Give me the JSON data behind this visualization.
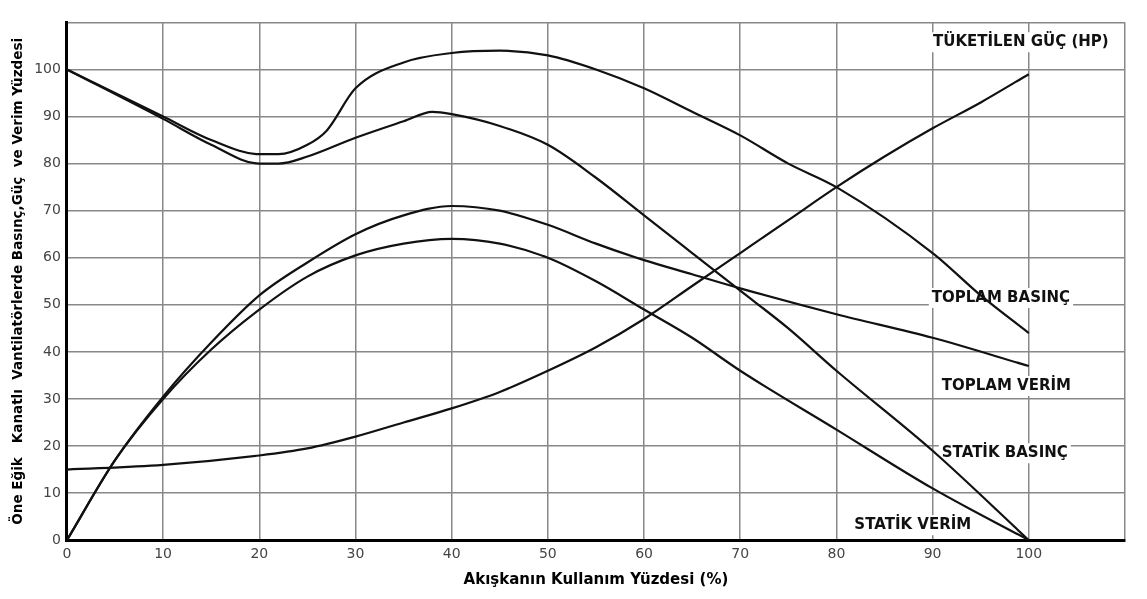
{
  "chart_data": {
    "type": "line",
    "xlabel": "Akışkanın Kullanım Yüzdesi (%)",
    "ylabel": "Öne Eğik   Kanatlı  Vantilatörlerde Basınç,Güç  ve Verim Yüzdesi",
    "xlim": [
      0,
      110
    ],
    "ylim": [
      0,
      110
    ],
    "xticks": [
      0,
      10,
      20,
      30,
      40,
      50,
      60,
      70,
      80,
      90,
      100,
      {
        "value": 110,
        "label": null
      }
    ],
    "yticks": [
      0,
      10,
      20,
      30,
      40,
      50,
      60,
      70,
      80,
      90,
      100,
      {
        "value": 110,
        "label": null
      }
    ],
    "grid": true,
    "legend": false,
    "marker": "none",
    "line_style": "solid",
    "series": [
      {
        "name": "TÜKETİLEN GÜÇ (HP)",
        "color": "#111111",
        "x": [
          0,
          10,
          20,
          25,
          30,
          35,
          40,
          45,
          50,
          55,
          60,
          65,
          70,
          75,
          80,
          85,
          90,
          95,
          100
        ],
        "values": [
          15,
          16,
          18,
          19.5,
          22,
          25,
          28,
          31.5,
          36,
          41,
          47,
          54,
          61,
          68,
          75,
          81.5,
          87.5,
          93,
          99
        ]
      },
      {
        "name": "TOPLAM BASINÇ",
        "color": "#111111",
        "x": [
          0,
          5,
          10,
          15,
          20,
          22,
          25,
          27,
          30,
          35,
          40,
          45,
          50,
          55,
          60,
          65,
          70,
          75,
          80,
          90,
          95,
          100
        ],
        "values": [
          100,
          95,
          90,
          85,
          82,
          82,
          84,
          87,
          96,
          101.5,
          103.5,
          104,
          103,
          100,
          96,
          91,
          86,
          80,
          75,
          61,
          52,
          44
        ]
      },
      {
        "name": "TOPLAM VERİM",
        "color": "#111111",
        "x": [
          0,
          5,
          10,
          15,
          20,
          25,
          30,
          35,
          40,
          45,
          50,
          55,
          60,
          65,
          70,
          80,
          90,
          100
        ],
        "values": [
          0,
          17,
          30.5,
          42,
          52,
          59,
          65,
          69,
          71,
          70,
          67,
          63,
          59.5,
          56.5,
          53.5,
          48,
          43,
          37
        ]
      },
      {
        "name": "STATİK BASINÇ",
        "color": "#111111",
        "x": [
          0,
          10,
          15,
          20,
          22,
          25,
          30,
          35,
          38,
          40,
          45,
          50,
          55,
          60,
          65,
          70,
          75,
          80,
          90,
          100
        ],
        "values": [
          100,
          89.5,
          84,
          80,
          80,
          81.5,
          85.5,
          89,
          91,
          90.5,
          88,
          84,
          77,
          69,
          61,
          53,
          45,
          36,
          19,
          0
        ]
      },
      {
        "name": "STATİK VERİM",
        "color": "#111111",
        "x": [
          0,
          5,
          10,
          15,
          20,
          25,
          30,
          35,
          40,
          45,
          50,
          55,
          60,
          65,
          70,
          80,
          90,
          100
        ],
        "values": [
          0,
          17,
          30,
          40.5,
          49,
          56,
          60.5,
          63,
          64,
          63,
          60,
          55,
          49,
          43,
          36,
          23.5,
          11,
          0
        ]
      }
    ]
  }
}
